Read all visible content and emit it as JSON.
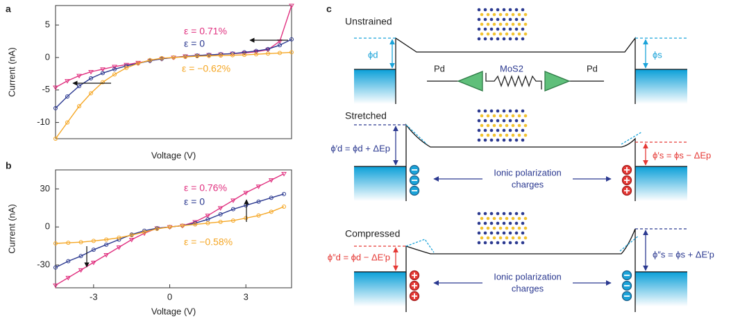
{
  "chart_data": [
    {
      "type": "line",
      "panel_label": "a",
      "xlabel": "Voltage (V)",
      "ylabel": "Current (nA)",
      "x": [
        -5,
        -4.5,
        -4,
        -3.5,
        -3,
        -2.5,
        -2,
        -1.5,
        -1,
        -0.5,
        0,
        0.5,
        1,
        1.5,
        2,
        2.5,
        3,
        3.5,
        4,
        4.5,
        5
      ],
      "xlim": [
        -5,
        5
      ],
      "ylim": [
        -12.5,
        8
      ],
      "yticks": [
        5,
        0,
        -5,
        -10
      ],
      "series": [
        {
          "name": "ε = 0.71%",
          "color": "#e0307f",
          "marker": "triangle",
          "values": [
            -4.6,
            -3.6,
            -2.8,
            -2.2,
            -1.8,
            -1.4,
            -1.1,
            -0.8,
            -0.5,
            -0.2,
            0,
            0.2,
            0.3,
            0.4,
            0.5,
            0.6,
            0.7,
            0.9,
            1.2,
            2.5,
            8
          ]
        },
        {
          "name": "ε = 0",
          "color": "#2b3990",
          "marker": "circle",
          "values": [
            -7.8,
            -6,
            -4.4,
            -3.2,
            -2.4,
            -1.8,
            -1.3,
            -0.9,
            -0.5,
            -0.2,
            0,
            0.15,
            0.3,
            0.4,
            0.5,
            0.6,
            0.8,
            1,
            1.3,
            1.9,
            2.8
          ]
        },
        {
          "name": "ε = −0.62%",
          "color": "#f5a623",
          "marker": "circle",
          "values": [
            -12.5,
            -10,
            -7.5,
            -5.5,
            -3.8,
            -2.6,
            -1.6,
            -0.9,
            -0.4,
            -0.1,
            0,
            0.1,
            0.2,
            0.25,
            0.3,
            0.35,
            0.4,
            0.5,
            0.6,
            0.7,
            0.8
          ]
        }
      ]
    },
    {
      "type": "line",
      "panel_label": "b",
      "xlabel": "Voltage (V)",
      "ylabel": "Current (nA)",
      "x": [
        -4.5,
        -4,
        -3.5,
        -3,
        -2.5,
        -2,
        -1.5,
        -1,
        -0.5,
        0,
        0.5,
        1,
        1.5,
        2,
        2.5,
        3,
        3.5,
        4,
        4.5
      ],
      "xlim": [
        -4.5,
        4.8
      ],
      "ylim": [
        -48,
        45
      ],
      "xticks": [
        -3,
        0,
        3
      ],
      "yticks": [
        30,
        0,
        -30
      ],
      "series": [
        {
          "name": "ε = 0.76%",
          "color": "#e0307f",
          "marker": "triangle",
          "values": [
            -46,
            -40,
            -34,
            -28,
            -22,
            -16,
            -10,
            -5,
            -1,
            0,
            1,
            4,
            9,
            15,
            21,
            27,
            32,
            37,
            42
          ]
        },
        {
          "name": "ε = 0",
          "color": "#2b3990",
          "marker": "circle",
          "values": [
            -32,
            -27,
            -23,
            -18,
            -14,
            -10,
            -6,
            -3,
            -1,
            0,
            1,
            3,
            6,
            10,
            14,
            17,
            20,
            23,
            26
          ]
        },
        {
          "name": "ε = −0.58%",
          "color": "#f5a623",
          "marker": "circle",
          "values": [
            -13,
            -12.5,
            -12,
            -11,
            -10,
            -8.5,
            -6.5,
            -4,
            -1.5,
            0,
            1,
            2,
            3,
            4,
            5,
            7,
            9,
            12,
            16
          ]
        }
      ]
    }
  ],
  "diagram": {
    "panel_label": "c",
    "unstrained": {
      "title": "Unstrained",
      "phi_d": "ϕd",
      "phi_s": "ϕs",
      "pd_left": "Pd",
      "mos2": "MoS2",
      "pd_right": "Pd"
    },
    "stretched": {
      "title": "Stretched",
      "left": "ϕ′d = ϕd + ΔEp",
      "right": "ϕ′s = ϕs − ΔEp",
      "charges": [
        "Ionic polarization",
        "charges"
      ]
    },
    "compressed": {
      "title": "Compressed",
      "left": "ϕ″d = ϕd − ΔE′p",
      "right": "ϕ″s = ϕs + ΔE′p",
      "charges": [
        "Ionic polarization",
        "charges"
      ]
    }
  }
}
